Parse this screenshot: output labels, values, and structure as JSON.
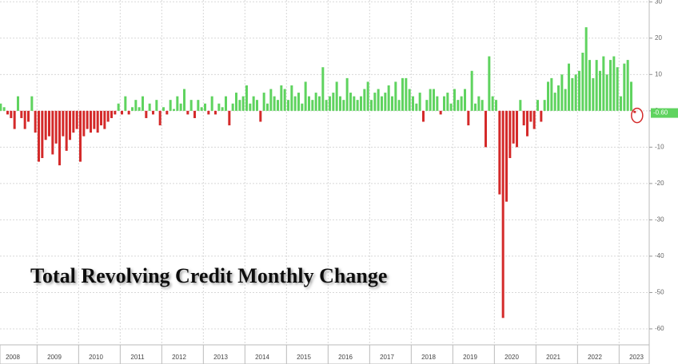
{
  "chart_data": {
    "type": "bar",
    "title": "Total Revolving Credit Monthly Change",
    "categories": [
      null,
      null,
      null,
      null,
      "2008",
      null,
      null,
      null,
      null,
      null,
      null,
      null,
      null,
      null,
      null,
      null,
      "2009",
      null,
      null,
      null,
      null,
      null,
      null,
      null,
      null,
      null,
      null,
      null,
      "2010",
      null,
      null,
      null,
      null,
      null,
      null,
      null,
      null,
      null,
      null,
      null,
      "2011",
      null,
      null,
      null,
      null,
      null,
      null,
      null,
      null,
      null,
      null,
      null,
      "2012",
      null,
      null,
      null,
      null,
      null,
      null,
      null,
      null,
      null,
      null,
      null,
      "2013",
      null,
      null,
      null,
      null,
      null,
      null,
      null,
      null,
      null,
      null,
      null,
      "2014",
      null,
      null,
      null,
      null,
      null,
      null,
      null,
      null,
      null,
      null,
      null,
      "2015",
      null,
      null,
      null,
      null,
      null,
      null,
      null,
      null,
      null,
      null,
      null,
      "2016",
      null,
      null,
      null,
      null,
      null,
      null,
      null,
      null,
      null,
      null,
      null,
      "2017",
      null,
      null,
      null,
      null,
      null,
      null,
      null,
      null,
      null,
      null,
      null,
      "2018",
      null,
      null,
      null,
      null,
      null,
      null,
      null,
      null,
      null,
      null,
      null,
      "2019",
      null,
      null,
      null,
      null,
      null,
      null,
      null,
      null,
      null,
      null,
      null,
      "2020",
      null,
      null,
      null,
      null,
      null,
      null,
      null,
      null,
      null,
      null,
      null,
      "2021",
      null,
      null,
      null,
      null,
      null,
      null,
      null,
      null,
      null,
      null,
      null,
      "2022",
      null,
      null,
      null,
      null,
      null,
      null,
      null,
      null,
      null,
      null,
      null,
      "2023"
    ],
    "values": [
      2,
      2,
      1,
      -1,
      -2,
      -5,
      4,
      -2,
      -5,
      -3,
      4,
      -6,
      -14,
      -13,
      -8,
      -7,
      -12,
      -9,
      -15,
      -7,
      -11,
      -8,
      -6,
      -5,
      -14,
      -7,
      -5,
      -6,
      -5,
      -6,
      -4,
      -5,
      -3,
      -2,
      -1,
      2,
      -1,
      4,
      -1,
      1,
      3,
      1,
      4,
      -2,
      2,
      -1,
      3,
      -4,
      1,
      -1,
      3,
      0.5,
      4,
      2,
      6,
      -1,
      3,
      -2,
      3,
      1,
      2,
      -1,
      4,
      -1,
      2,
      1,
      4,
      -4,
      2,
      5,
      3,
      4,
      7,
      2,
      4,
      3,
      -3,
      5,
      2,
      6,
      4,
      3,
      7,
      6,
      3,
      7,
      4,
      5,
      2,
      8,
      4,
      3,
      5,
      4,
      12,
      3,
      4,
      5,
      8,
      4,
      3,
      9,
      5,
      4,
      3,
      4,
      6,
      8,
      3,
      5,
      6,
      4,
      5,
      7,
      4,
      8,
      3,
      9,
      9,
      6,
      4,
      2,
      5,
      -3,
      3,
      6,
      6,
      4,
      -1,
      4,
      5,
      2,
      6,
      3,
      4,
      6,
      -4,
      11,
      2,
      4,
      3,
      -10,
      15,
      4,
      3,
      -23,
      -57,
      -25,
      -13,
      -9,
      -10,
      3,
      -4,
      -7,
      -3,
      -5,
      3,
      -3,
      3,
      8,
      9,
      5,
      7,
      10,
      6,
      13,
      9,
      10,
      11,
      16,
      23,
      14,
      9,
      14,
      11,
      15,
      10,
      14,
      15,
      12,
      4,
      13,
      14,
      8,
      -0.6
    ],
    "last_value_label": "-0.60",
    "positive_color": "#5fd35f",
    "negative_color": "#d42a2a",
    "ylim": [
      -64.4,
      30.5
    ],
    "yticks": [
      -60,
      -50,
      -40,
      -30,
      -20,
      -10,
      0,
      10,
      20,
      30
    ],
    "grid": true
  }
}
